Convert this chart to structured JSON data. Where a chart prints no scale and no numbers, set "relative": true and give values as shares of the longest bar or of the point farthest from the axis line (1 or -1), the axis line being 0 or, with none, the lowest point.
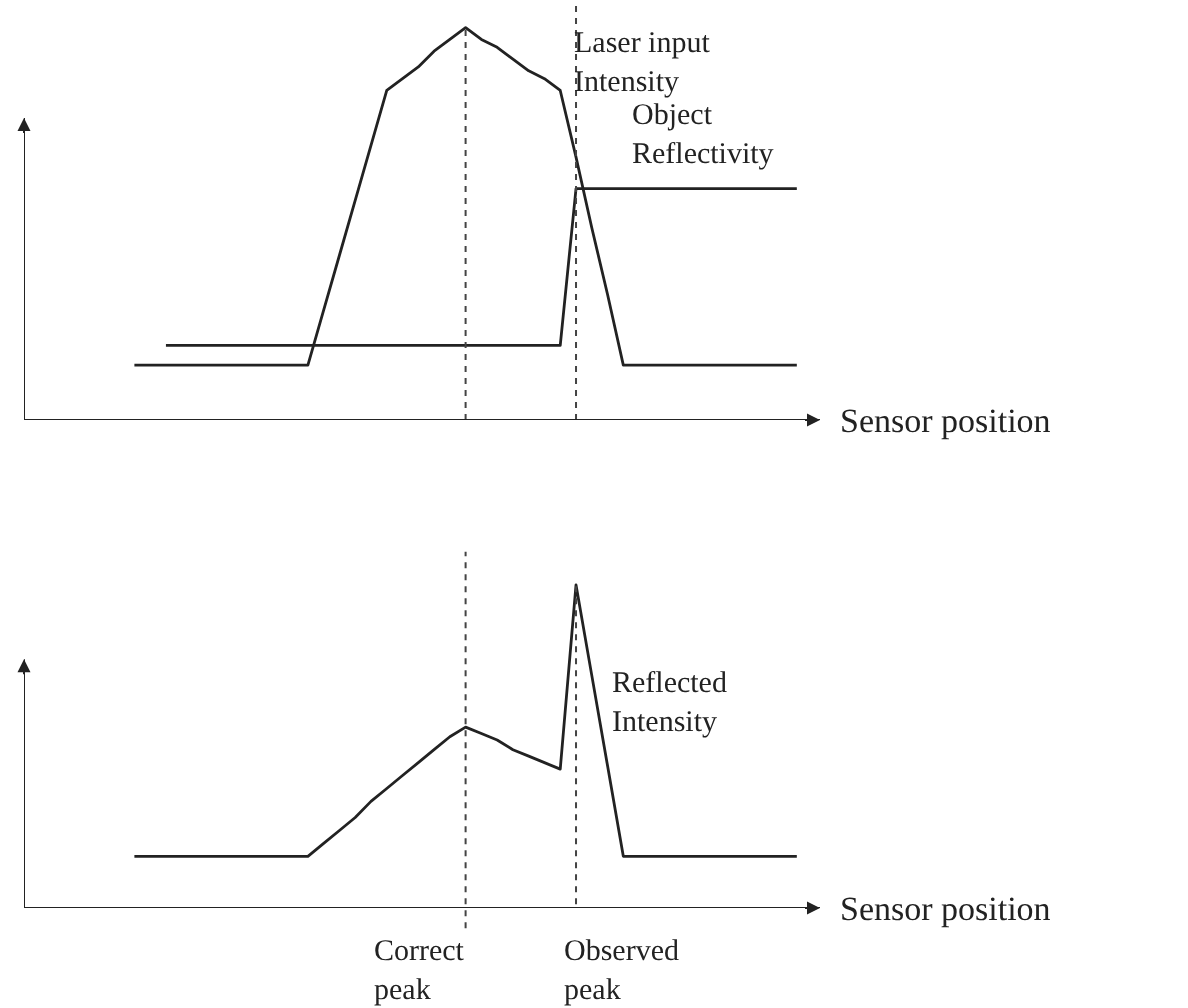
{
  "chart_data": [
    {
      "type": "line",
      "relative": true,
      "xlabel": "Sensor position",
      "grid": false,
      "legend": false,
      "marker": "none",
      "line_style": "solid",
      "categories": [
        null,
        null,
        null,
        null,
        null,
        null,
        null,
        null,
        null,
        null,
        null,
        null,
        null,
        null,
        null,
        null,
        null,
        null,
        null,
        null,
        null,
        null,
        null,
        null,
        null,
        null,
        null,
        null,
        null,
        null,
        null,
        null,
        null,
        null,
        null,
        null,
        null,
        null,
        null,
        null,
        null,
        null,
        null,
        null,
        null,
        null,
        null,
        null,
        null,
        null
      ],
      "series": [
        {
          "name": "Laser input Intensity",
          "color": "#222222",
          "values": [
            null,
            null,
            null,
            null,
            null,
            null,
            null,
            0.14,
            0.14,
            0.14,
            0.14,
            0.14,
            0.14,
            0.14,
            0.14,
            0.14,
            0.14,
            0.14,
            0.14,
            0.28,
            0.42,
            0.56,
            0.7,
            0.84,
            0.87,
            0.9,
            0.94,
            0.97,
            1,
            0.97,
            0.95,
            0.92,
            0.89,
            0.87,
            0.84,
            0.67,
            0.49,
            0.32,
            0.14,
            0.14,
            0.14,
            0.14,
            0.14,
            0.14,
            0.14,
            0.14,
            0.14,
            0.14,
            0.14,
            0.14
          ]
        },
        {
          "name": "Object Reflectivity",
          "color": "#222222",
          "values": [
            null,
            null,
            null,
            null,
            null,
            null,
            null,
            null,
            null,
            0.19,
            0.19,
            0.19,
            0.19,
            0.19,
            0.19,
            0.19,
            0.19,
            0.19,
            0.19,
            0.19,
            0.19,
            0.19,
            0.19,
            0.19,
            0.19,
            0.19,
            0.19,
            0.19,
            0.19,
            0.19,
            0.19,
            0.19,
            0.19,
            0.19,
            0.19,
            0.59,
            0.59,
            0.59,
            0.59,
            0.59,
            0.59,
            0.59,
            0.59,
            0.59,
            0.59,
            0.59,
            0.59,
            0.59,
            0.59,
            0.59
          ]
        }
      ]
    },
    {
      "type": "line",
      "relative": true,
      "xlabel": "Sensor position",
      "grid": false,
      "legend": false,
      "marker": "none",
      "line_style": "solid",
      "categories": [
        null,
        null,
        null,
        null,
        null,
        null,
        null,
        null,
        null,
        null,
        null,
        null,
        null,
        null,
        null,
        null,
        null,
        null,
        null,
        null,
        null,
        null,
        null,
        null,
        null,
        null,
        null,
        null,
        null,
        null,
        null,
        null,
        null,
        null,
        null,
        null,
        null,
        null,
        null,
        null,
        null,
        null,
        null,
        null,
        null,
        null,
        null,
        null,
        null,
        null
      ],
      "series": [
        {
          "name": "Reflected Intensity",
          "color": "#222222",
          "values": [
            null,
            null,
            null,
            null,
            null,
            null,
            null,
            0.16,
            0.16,
            0.16,
            0.16,
            0.16,
            0.16,
            0.16,
            0.16,
            0.16,
            0.16,
            0.16,
            0.16,
            0.2,
            0.24,
            0.28,
            0.33,
            0.37,
            0.41,
            0.45,
            0.49,
            0.53,
            0.56,
            0.54,
            0.52,
            0.49,
            0.47,
            0.45,
            0.43,
            1,
            0.72,
            0.44,
            0.16,
            0.16,
            0.16,
            0.16,
            0.16,
            0.16,
            0.16,
            0.16,
            0.16,
            0.16,
            0.16,
            0.16
          ]
        }
      ],
      "annotations": [
        "Correct peak",
        "Observed peak"
      ]
    }
  ]
}
